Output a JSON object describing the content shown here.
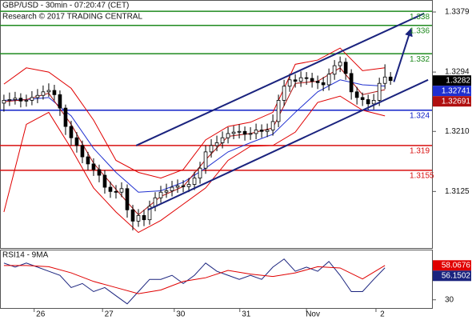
{
  "chart_data": [
    {
      "type": "candlestick",
      "title": "GBP/USD - 30min - 07:20:47 (CET)",
      "subtitle": "Research © 2017 TRADING CENTRAL",
      "color": "#000000",
      "xlim": [
        -0.7,
        76.4
      ],
      "ylim": [
        1.3045,
        1.3396
      ],
      "yticks": [
        1.3379,
        1.3294,
        {
          "value": 1.321,
          "label": "1.3210"
        },
        1.3125
      ],
      "grid": false,
      "open": [
        1.325,
        1.3254,
        1.3255,
        1.3257,
        1.3253,
        1.3254,
        1.3258,
        1.3261,
        1.3266,
        1.3268,
        1.3262,
        1.3243,
        1.3217,
        1.3201,
        1.319,
        1.3174,
        1.3164,
        1.3156,
        1.3148,
        1.3131,
        1.3125,
        1.3124,
        1.3129,
        1.3099,
        1.3083,
        1.3091,
        1.3085,
        1.3104,
        1.3116,
        1.3124,
        1.3126,
        1.3131,
        1.3133,
        1.3132,
        1.3135,
        1.3144,
        1.3158,
        1.3181,
        1.319,
        1.3194,
        1.3201,
        1.3207,
        1.3209,
        1.321,
        1.3206,
        1.3207,
        1.3212,
        1.321,
        1.3212,
        1.3224,
        1.3254,
        1.3274,
        1.3283,
        1.3281,
        1.3286,
        1.3285,
        1.3281,
        1.3279,
        1.3276,
        1.3291,
        1.3303,
        1.3308,
        1.3292,
        1.3266,
        1.3258,
        1.3255,
        1.3249,
        1.3254,
        1.3278,
        1.3287
      ],
      "high": [
        1.3262,
        1.3265,
        1.3266,
        1.3264,
        1.3262,
        1.3267,
        1.327,
        1.3275,
        1.3278,
        1.3276,
        1.3268,
        1.3248,
        1.3225,
        1.3209,
        1.3197,
        1.3181,
        1.3172,
        1.3163,
        1.3155,
        1.3139,
        1.3134,
        1.3138,
        1.3135,
        1.3106,
        1.31,
        1.3099,
        1.3112,
        1.3124,
        1.3133,
        1.3136,
        1.314,
        1.3142,
        1.3141,
        1.3144,
        1.3153,
        1.3167,
        1.319,
        1.3199,
        1.3204,
        1.321,
        1.3216,
        1.3218,
        1.322,
        1.3217,
        1.3216,
        1.3221,
        1.322,
        1.3221,
        1.3234,
        1.3262,
        1.3283,
        1.3292,
        1.3291,
        1.3295,
        1.3294,
        1.3293,
        1.3289,
        1.3287,
        1.3299,
        1.3311,
        1.3316,
        1.3314,
        1.3298,
        1.3273,
        1.3265,
        1.3262,
        1.3263,
        1.3286,
        1.3305,
        1.3294
      ],
      "low": [
        1.3238,
        1.3246,
        1.3248,
        1.3244,
        1.3245,
        1.3247,
        1.325,
        1.3255,
        1.3259,
        1.3254,
        1.3232,
        1.3205,
        1.319,
        1.318,
        1.3165,
        1.3155,
        1.3147,
        1.3138,
        1.3122,
        1.3116,
        1.3115,
        1.3117,
        1.3088,
        1.307,
        1.3075,
        1.3076,
        1.3078,
        1.3097,
        1.3109,
        1.3116,
        1.3118,
        1.3123,
        1.3124,
        1.3124,
        1.3127,
        1.3136,
        1.315,
        1.3173,
        1.3182,
        1.3186,
        1.3193,
        1.3199,
        1.32,
        1.3197,
        1.3198,
        1.3199,
        1.3201,
        1.3202,
        1.3204,
        1.3216,
        1.3246,
        1.3266,
        1.3272,
        1.3273,
        1.3276,
        1.3272,
        1.327,
        1.3267,
        1.3268,
        1.3283,
        1.3294,
        1.3283,
        1.3255,
        1.3248,
        1.3246,
        1.324,
        1.3241,
        1.3246,
        1.327,
        1.3276
      ],
      "close": [
        1.3254,
        1.3255,
        1.3257,
        1.3253,
        1.3254,
        1.3258,
        1.3261,
        1.3266,
        1.3268,
        1.3262,
        1.3243,
        1.3217,
        1.3201,
        1.319,
        1.3174,
        1.3164,
        1.3156,
        1.3148,
        1.3131,
        1.3125,
        1.3124,
        1.3129,
        1.3099,
        1.3083,
        1.3091,
        1.3085,
        1.3104,
        1.3116,
        1.3124,
        1.3126,
        1.3131,
        1.3133,
        1.3132,
        1.3135,
        1.3144,
        1.3158,
        1.3181,
        1.319,
        1.3194,
        1.3201,
        1.3207,
        1.3209,
        1.321,
        1.3206,
        1.3207,
        1.3212,
        1.321,
        1.3212,
        1.3224,
        1.3254,
        1.3274,
        1.3283,
        1.3281,
        1.3286,
        1.3285,
        1.3281,
        1.3279,
        1.3276,
        1.3291,
        1.3303,
        1.3308,
        1.3292,
        1.3266,
        1.3258,
        1.3255,
        1.3249,
        1.3254,
        1.3278,
        1.3287,
        1.3282
      ],
      "overlays": [
        {
          "color": "#e00000",
          "x": [
            0,
            4,
            8,
            12,
            16,
            20,
            24,
            28,
            32,
            36,
            40,
            44,
            48,
            52,
            56,
            60,
            64,
            68
          ],
          "values": [
            1.3277,
            1.33,
            1.3294,
            1.3271,
            1.3226,
            1.3169,
            1.3152,
            1.3144,
            1.3156,
            1.3198,
            1.3217,
            1.3223,
            1.3237,
            1.3305,
            1.3311,
            1.3328,
            1.3296,
            1.33
          ]
        },
        {
          "color": "#e00000",
          "x": [
            0,
            4,
            8,
            12,
            16,
            20,
            24,
            28,
            32,
            36,
            40,
            44,
            48,
            52,
            56,
            60,
            64,
            68
          ],
          "values": [
            1.3096,
            1.322,
            1.3237,
            1.3186,
            1.313,
            1.3096,
            1.3067,
            1.3084,
            1.3107,
            1.313,
            1.3169,
            1.3189,
            1.319,
            1.3209,
            1.3251,
            1.326,
            1.324,
            1.3232
          ]
        },
        {
          "color": "#1f2fd0",
          "tag": true,
          "x": [
            0,
            4,
            8,
            12,
            16,
            20,
            24,
            28,
            32,
            36,
            40,
            44,
            48,
            52,
            56,
            60,
            64,
            68
          ],
          "values": [
            1.3254,
            1.3255,
            1.3258,
            1.3232,
            1.3186,
            1.3152,
            1.3124,
            1.3126,
            1.3138,
            1.3158,
            1.3181,
            1.3194,
            1.3206,
            1.3237,
            1.3266,
            1.3283,
            1.3276,
            1.32741
          ]
        },
        {
          "color": "#b01010",
          "tag": true,
          "x": [
            0,
            4,
            8,
            12,
            16,
            20,
            24,
            28,
            32,
            36,
            40,
            44,
            48,
            52,
            56,
            60,
            64,
            68
          ],
          "values": [
            1.3252,
            1.3255,
            1.3264,
            1.322,
            1.3165,
            1.3128,
            1.3092,
            1.3118,
            1.3132,
            1.317,
            1.3203,
            1.3207,
            1.3215,
            1.3278,
            1.3281,
            1.33,
            1.3262,
            1.32691
          ]
        }
      ],
      "levels": [
        {
          "value": 1.338,
          "color": "#1f8a1f"
        },
        {
          "value": 1.336,
          "color": "#1f8a1f"
        },
        {
          "value": 1.332,
          "color": "#1f8a1f"
        },
        {
          "value": 1.324,
          "color": "#1020c8"
        },
        {
          "value": 1.319,
          "color": "#d81010"
        },
        {
          "value": 1.3155,
          "color": "#d81010"
        }
      ],
      "trendlines": [
        {
          "color": "#1a237e",
          "x": [
            23.6,
            75
          ],
          "values": [
            1.319,
            1.3377
          ]
        },
        {
          "color": "#1a237e",
          "x": [
            25.7,
            75.7
          ],
          "values": [
            1.3099,
            1.3283
          ]
        },
        {
          "color": "#1a237e",
          "arrow": true,
          "x": [
            69.6,
            72.6
          ],
          "values": [
            1.328,
            1.3354
          ]
        }
      ]
    },
    {
      "type": "line",
      "title": "RSI14 - 9MA",
      "xlim": [
        -0.7,
        76.4
      ],
      "xticks": [
        {
          "value": 5.4,
          "label": "26"
        },
        {
          "value": 17.6,
          "label": "27"
        },
        {
          "value": 30.4,
          "label": "30"
        },
        {
          "value": 42.1,
          "label": "31"
        },
        {
          "value": 54,
          "label": "Nov"
        },
        {
          "value": 66.4,
          "label": "2"
        }
      ],
      "ylim": [
        23.3,
        71
      ],
      "yticks": [
        30
      ],
      "series": [
        {
          "color": "#1a237e",
          "tag": true,
          "x": [
            0,
            2,
            4,
            6,
            8,
            10,
            12,
            14,
            16,
            18,
            20,
            22,
            24,
            26,
            28,
            30,
            32,
            34,
            36,
            38,
            40,
            42,
            44,
            46,
            48,
            50,
            52,
            54,
            56,
            58,
            60,
            62,
            64,
            66,
            68
          ],
          "values": [
            60,
            56.7,
            60,
            56.7,
            53.3,
            50,
            40,
            43.3,
            36.7,
            40,
            33.3,
            26.7,
            36.7,
            46.7,
            46.7,
            50,
            43.3,
            50,
            60,
            53.3,
            50,
            46.7,
            50,
            46.7,
            56.7,
            63.3,
            53.3,
            56.7,
            53.3,
            61.3,
            50,
            36.7,
            36.7,
            46.7,
            56.1502
          ]
        },
        {
          "color": "#e00000",
          "tag": true,
          "x": [
            0,
            4,
            8,
            12,
            16,
            20,
            24,
            28,
            32,
            36,
            40,
            44,
            48,
            52,
            56,
            60,
            64,
            68
          ],
          "values": [
            58,
            58,
            57,
            52,
            45,
            40,
            35,
            38,
            45,
            48,
            54,
            51,
            49,
            52,
            57,
            56,
            47,
            58.0676
          ]
        }
      ]
    }
  ]
}
